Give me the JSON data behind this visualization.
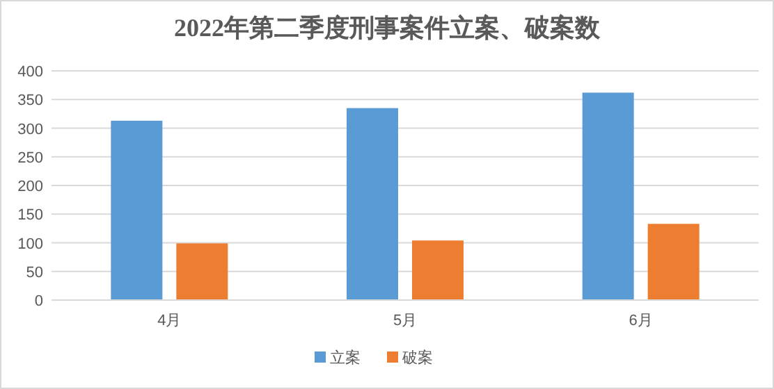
{
  "chart_data": {
    "type": "bar",
    "title": "2022年第二季度刑事案件立案、破案数",
    "categories": [
      "4月",
      "5月",
      "6月"
    ],
    "series": [
      {
        "name": "立案",
        "color": "#5b9bd5",
        "values": [
          313,
          335,
          362
        ]
      },
      {
        "name": "破案",
        "color": "#ed7d31",
        "values": [
          99,
          104,
          133
        ]
      }
    ],
    "ylim": [
      0,
      400
    ],
    "yticks": [
      0,
      50,
      100,
      150,
      200,
      250,
      300,
      350,
      400
    ],
    "grid": "y",
    "legend": "bottom"
  }
}
